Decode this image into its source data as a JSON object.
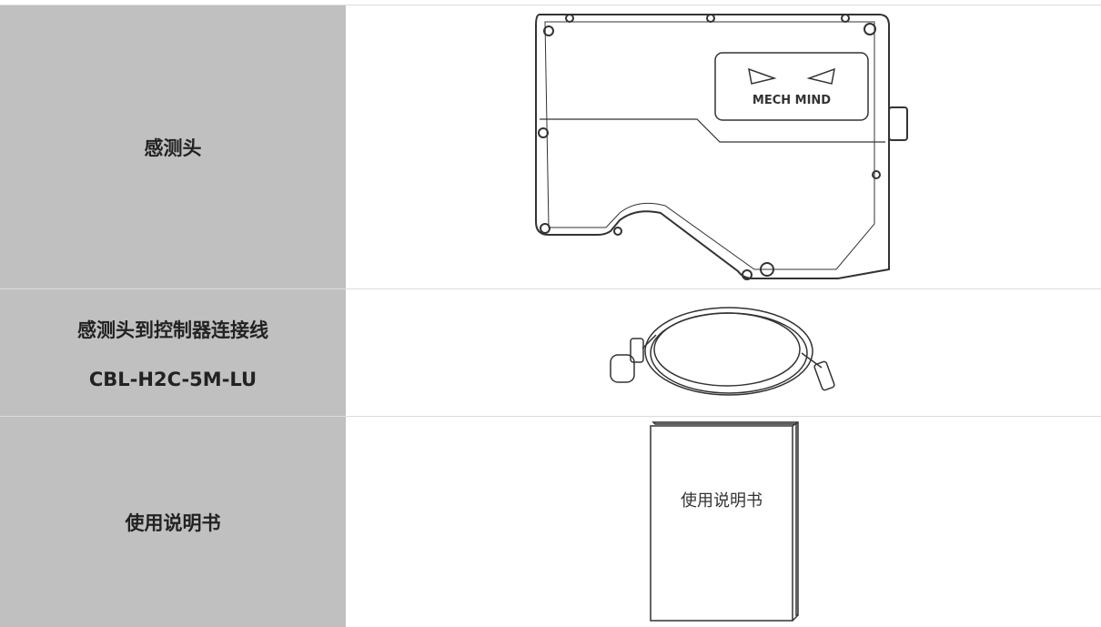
{
  "table": {
    "rows": [
      {
        "label": [
          "感测头"
        ],
        "logo": "MECH MIND"
      },
      {
        "label": [
          "感测头到控制器连接线",
          "CBL-H2C-5M-LU"
        ]
      },
      {
        "label": [
          "使用说明书"
        ],
        "cover": "使用说明书"
      }
    ]
  }
}
